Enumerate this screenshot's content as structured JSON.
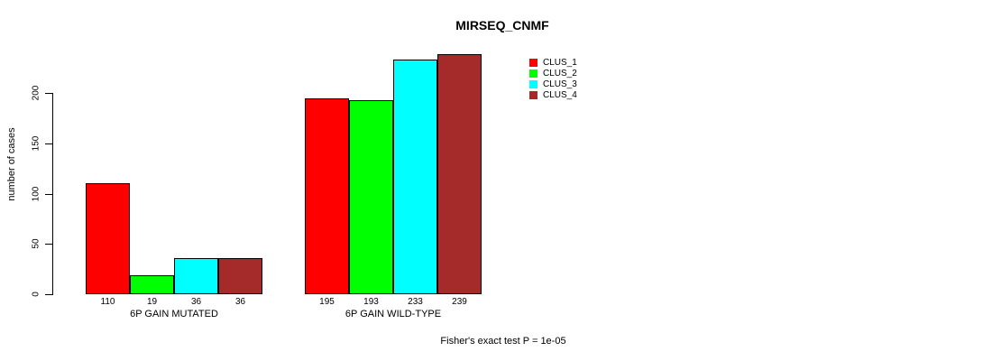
{
  "chart_data": {
    "type": "bar",
    "title": "MIRSEQ_CNMF",
    "ylabel": "number of cases",
    "xlabel": "",
    "ylim": [
      0,
      200
    ],
    "yticks": [
      0,
      50,
      100,
      150,
      200
    ],
    "grid": false,
    "legend_position": "top-right",
    "categories": [
      "6P GAIN MUTATED",
      "6P GAIN WILD-TYPE"
    ],
    "series": [
      {
        "name": "CLUS_1",
        "color": "#ff0000",
        "values": [
          110,
          195
        ]
      },
      {
        "name": "CLUS_2",
        "color": "#00ff00",
        "values": [
          19,
          193
        ]
      },
      {
        "name": "CLUS_3",
        "color": "#00ffff",
        "values": [
          36,
          233
        ]
      },
      {
        "name": "CLUS_4",
        "color": "#a52a2a",
        "values": [
          36,
          239
        ]
      }
    ],
    "bar_value_labels": [
      [
        "110",
        "19",
        "36",
        "36"
      ],
      [
        "195",
        "193",
        "233",
        "239"
      ]
    ],
    "footnote": "Fisher's exact test P = 1e-05"
  }
}
